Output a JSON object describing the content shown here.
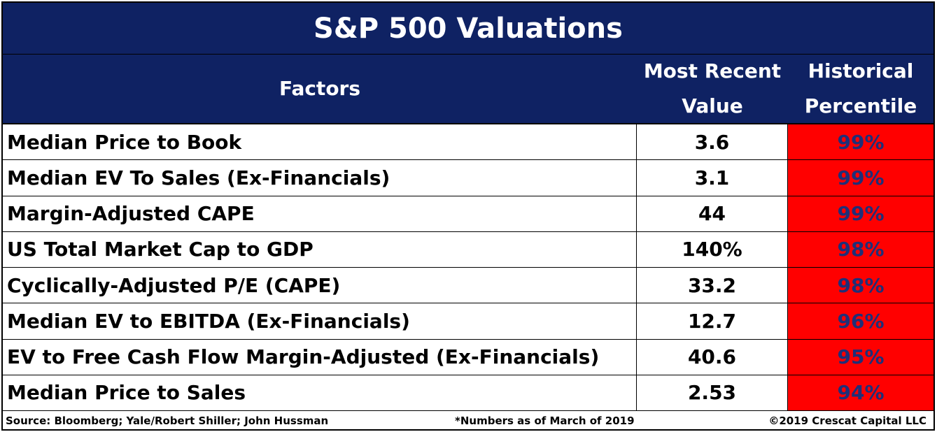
{
  "colors": {
    "navy": "#0f2263",
    "alert_red": "#ff0000",
    "pct_text": "#1f2f78"
  },
  "title": "S&P 500 Valuations",
  "headers": {
    "factors": "Factors",
    "value_line1": "Most Recent",
    "value_line2": "Value",
    "pct_line1": "Historical",
    "pct_line2": "Percentile"
  },
  "rows": [
    {
      "factor": "Median Price to Book",
      "value": "3.6",
      "percentile": "99%"
    },
    {
      "factor": "Median EV To Sales (Ex-Financials)",
      "value": "3.1",
      "percentile": "99%"
    },
    {
      "factor": "Margin-Adjusted CAPE",
      "value": "44",
      "percentile": "99%"
    },
    {
      "factor": "US Total Market Cap to GDP",
      "value": "140%",
      "percentile": "98%"
    },
    {
      "factor": "Cyclically-Adjusted P/E (CAPE)",
      "value": "33.2",
      "percentile": "98%"
    },
    {
      "factor": "Median EV to EBITDA (Ex-Financials)",
      "value": "12.7",
      "percentile": "96%"
    },
    {
      "factor": "EV to Free Cash Flow Margin-Adjusted (Ex-Financials)",
      "value": "40.6",
      "percentile": "95%"
    },
    {
      "factor": "Median Price to Sales",
      "value": "2.53",
      "percentile": "94%"
    }
  ],
  "footer": {
    "source": "Source: Bloomberg; Yale/Robert Shiller; John Hussman",
    "note": "*Numbers as of March of 2019",
    "copyright": "©2019 Crescat Capital LLC"
  },
  "chart_data": {
    "type": "table",
    "title": "S&P 500 Valuations",
    "columns": [
      "Factors",
      "Most Recent Value",
      "Historical Percentile"
    ],
    "rows": [
      [
        "Median Price to Book",
        "3.6",
        "99%"
      ],
      [
        "Median EV To Sales (Ex-Financials)",
        "3.1",
        "99%"
      ],
      [
        "Margin-Adjusted CAPE",
        "44",
        "99%"
      ],
      [
        "US Total Market Cap to GDP",
        "140%",
        "98%"
      ],
      [
        "Cyclically-Adjusted P/E (CAPE)",
        "33.2",
        "98%"
      ],
      [
        "Median EV to EBITDA (Ex-Financials)",
        "12.7",
        "96%"
      ],
      [
        "EV to Free Cash Flow Margin-Adjusted (Ex-Financials)",
        "40.6",
        "95%"
      ],
      [
        "Median Price to Sales",
        "2.53",
        "94%"
      ]
    ]
  }
}
